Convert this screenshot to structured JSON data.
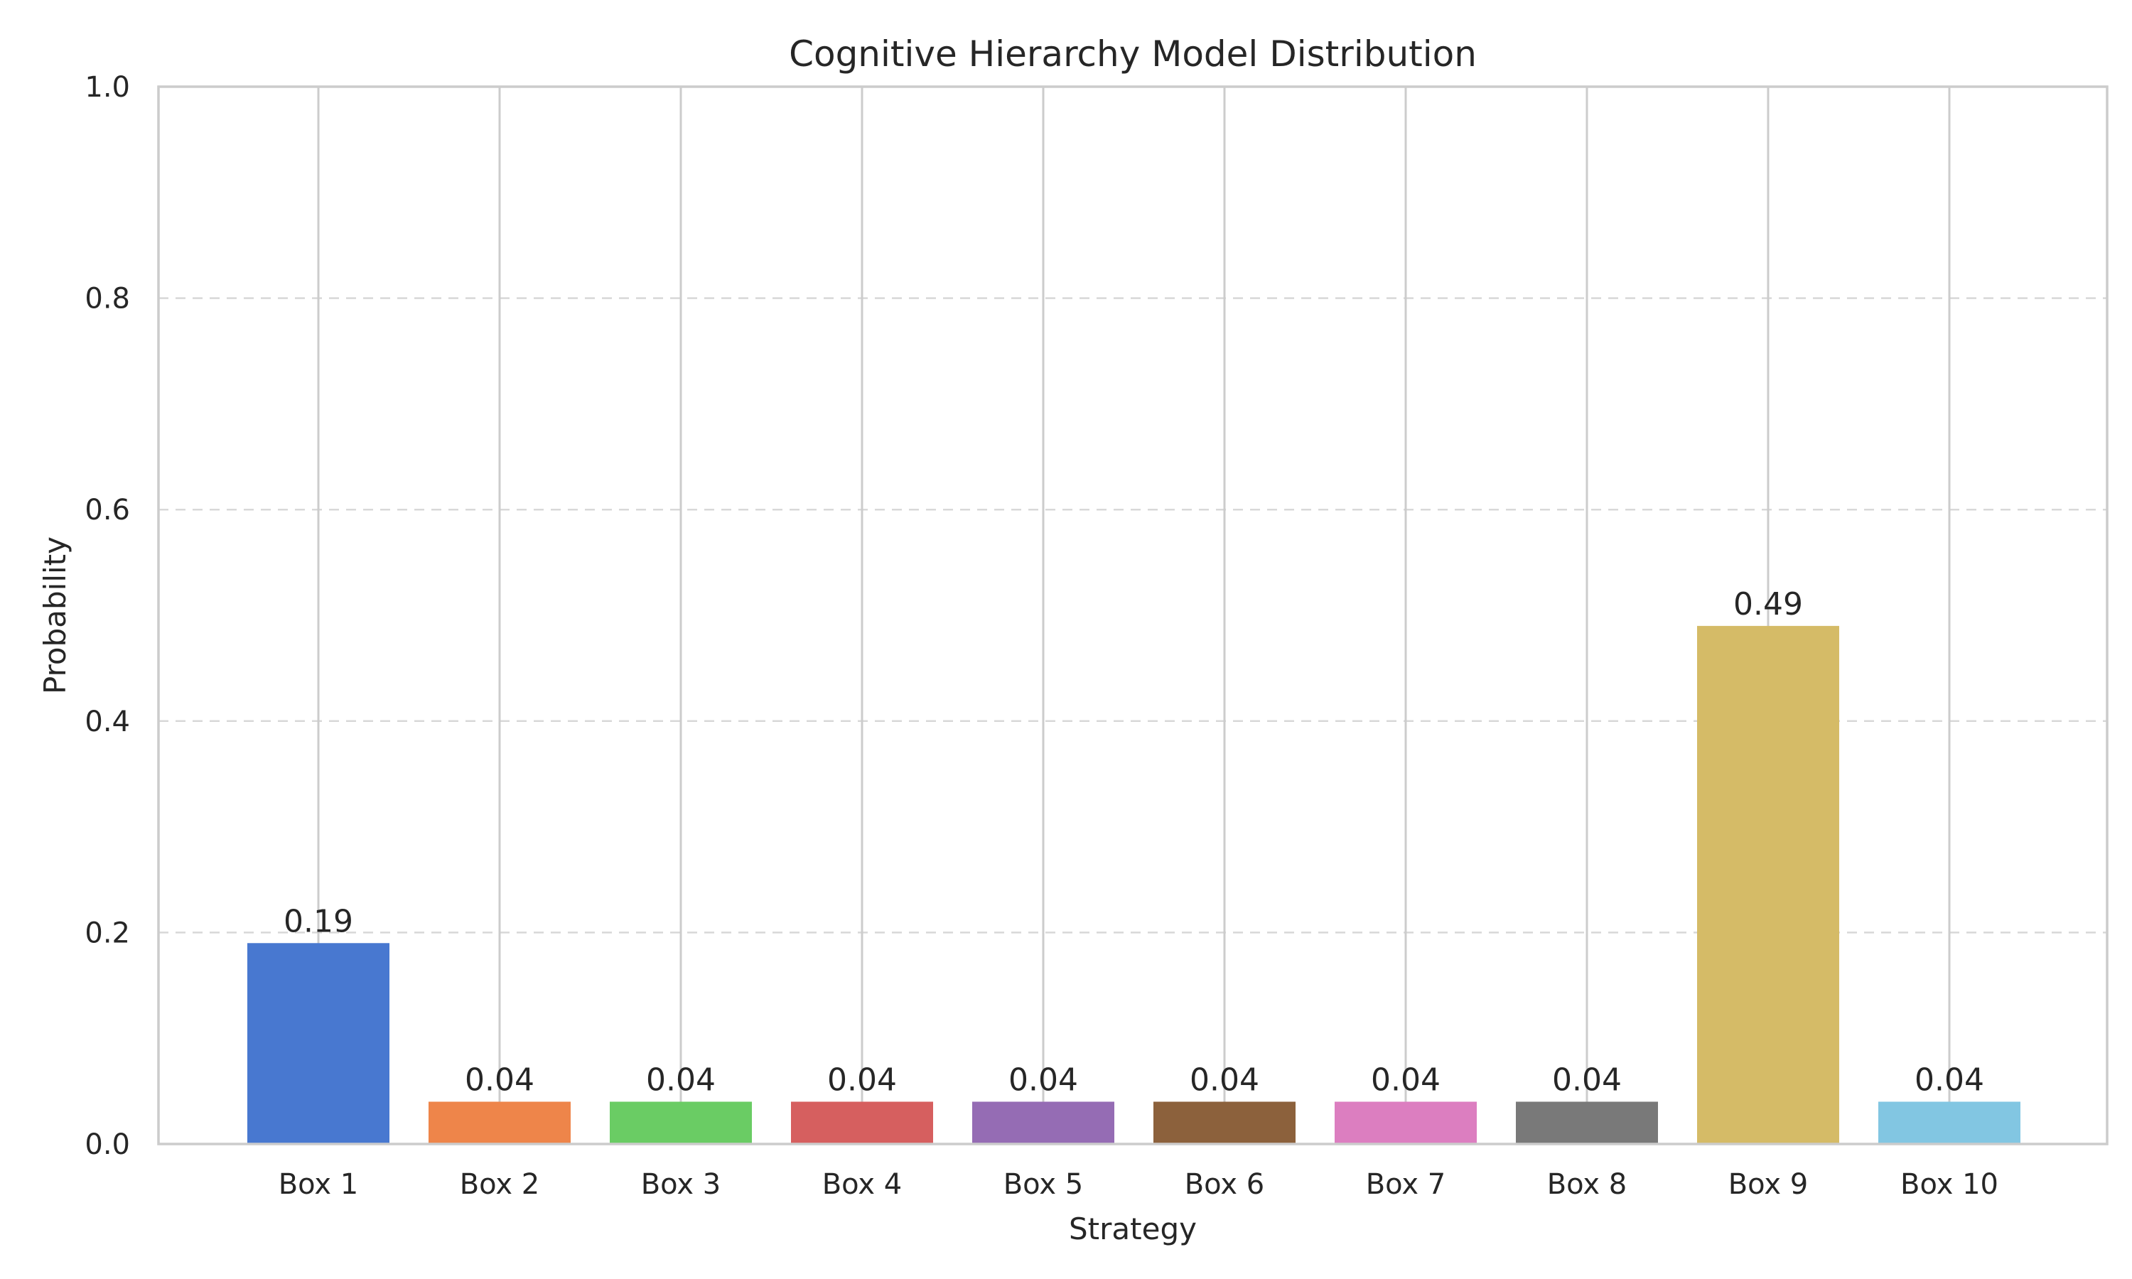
{
  "chart_data": {
    "type": "bar",
    "title": "Cognitive Hierarchy Model Distribution",
    "xlabel": "Strategy",
    "ylabel": "Probability",
    "categories": [
      "Box 1",
      "Box 2",
      "Box 3",
      "Box 4",
      "Box 5",
      "Box 6",
      "Box 7",
      "Box 8",
      "Box 9",
      "Box 10"
    ],
    "values": [
      0.19,
      0.04,
      0.04,
      0.04,
      0.04,
      0.04,
      0.04,
      0.04,
      0.49,
      0.04
    ],
    "value_labels": [
      "0.19",
      "0.04",
      "0.04",
      "0.04",
      "0.04",
      "0.04",
      "0.04",
      "0.04",
      "0.49",
      "0.04"
    ],
    "colors": [
      "#4878d0",
      "#ee854a",
      "#6acc64",
      "#d65f5f",
      "#956cb4",
      "#8c613c",
      "#dc7ec0",
      "#797979",
      "#d5bb67",
      "#82c6e2"
    ],
    "ylim": [
      0,
      1.0
    ],
    "yticks": [
      0.0,
      0.2,
      0.4,
      0.6,
      0.8,
      1.0
    ],
    "ytick_labels": [
      "0.0",
      "0.2",
      "0.4",
      "0.6",
      "0.8",
      "1.0"
    ],
    "grid": {
      "horizontal": "dashed",
      "vertical": "solid"
    },
    "legend": "none"
  }
}
